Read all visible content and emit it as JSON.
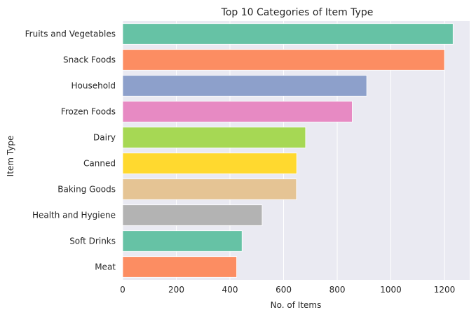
{
  "chart_data": {
    "type": "bar",
    "orientation": "horizontal",
    "title": "Top 10 Categories of Item Type",
    "xlabel": "No. of Items",
    "ylabel": "Item Type",
    "categories": [
      "Fruits and Vegetables",
      "Snack Foods",
      "Household",
      "Frozen Foods",
      "Dairy",
      "Canned",
      "Baking Goods",
      "Health and Hygiene",
      "Soft Drinks",
      "Meat"
    ],
    "values": [
      1232,
      1200,
      910,
      856,
      682,
      649,
      648,
      520,
      445,
      425
    ],
    "xlim": [
      0,
      1294
    ],
    "xticks": [
      0,
      200,
      400,
      600,
      800,
      1000,
      1200
    ],
    "grid": true,
    "background": "#eaeaf2",
    "colors": [
      "#66c2a5",
      "#fc8d62",
      "#8da0cb",
      "#e78ac3",
      "#a6d854",
      "#ffd92f",
      "#e5c494",
      "#b3b3b3",
      "#66c2a5",
      "#fc8d62"
    ]
  }
}
